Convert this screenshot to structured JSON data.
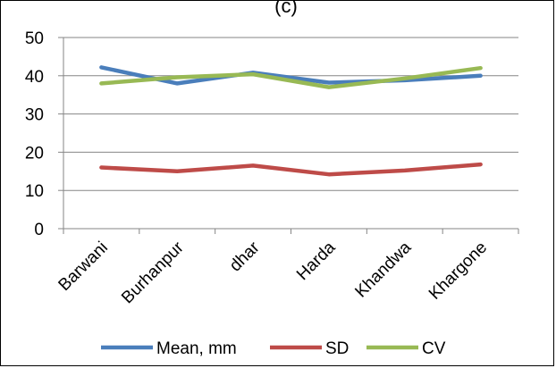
{
  "chart_data": {
    "type": "line",
    "title": "(c)",
    "categories": [
      "Barwani",
      "Burhanpur",
      "dhar",
      "Harda",
      "Khandwa",
      "Khargone"
    ],
    "ylim": [
      0,
      50
    ],
    "yticks": [
      "0",
      "10",
      "20",
      "30",
      "40",
      "50"
    ],
    "grid": true,
    "legend": "bottom",
    "series": [
      {
        "name": "Mean, mm",
        "color": "#4a7ebb",
        "values": [
          42.2,
          38.0,
          40.8,
          38.2,
          38.8,
          40.0
        ]
      },
      {
        "name": "SD",
        "color": "#be4b48",
        "values": [
          16.0,
          15.0,
          16.5,
          14.2,
          15.2,
          16.8
        ]
      },
      {
        "name": "CV",
        "color": "#98b954",
        "values": [
          38.0,
          39.6,
          40.4,
          37.0,
          39.3,
          42.0
        ]
      }
    ]
  }
}
